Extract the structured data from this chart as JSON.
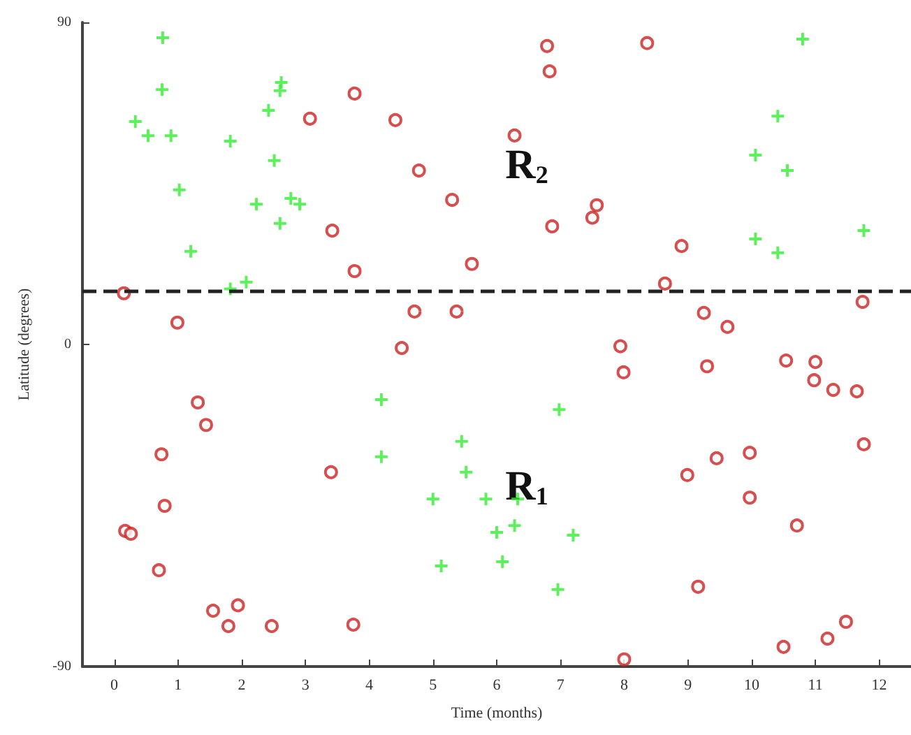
{
  "chart_data": {
    "type": "scatter",
    "xlabel": "Time (months)",
    "ylabel": "Latitude (degrees)",
    "xlim": [
      -0.5,
      12.5
    ],
    "xticks": [
      0,
      1,
      2,
      3,
      4,
      5,
      6,
      7,
      8,
      9,
      10,
      11,
      12
    ],
    "ylim": [
      -90,
      90
    ],
    "yticks": [
      -90,
      0,
      90
    ],
    "grid": false,
    "ref_lines": [
      {
        "axis": "y",
        "value": 15,
        "line_style": "dashed",
        "color": "#222222"
      }
    ],
    "annotations": [
      "R$_{2}$",
      "R$_{1}$"
    ],
    "series": [
      {
        "color": "#33ee33",
        "marker": "cross",
        "x": [
          0.76,
          0.75,
          0.33,
          0.53,
          0.89,
          1.02,
          1.2,
          1.82,
          2.07,
          1.82,
          2.42,
          2.62,
          2.6,
          2.51,
          2.23,
          2.77,
          2.91,
          2.6,
          10.8,
          10.41,
          10.06,
          10.56,
          10.06,
          10.41,
          11.76,
          4.19,
          4.19,
          5.0,
          5.13,
          5.45,
          5.52,
          6.98,
          5.83,
          6.33,
          6.0,
          6.28,
          7.2,
          6.09,
          6.96
        ],
        "values": [
          85.7,
          71.2,
          62.3,
          58.3,
          58.3,
          43.2,
          26,
          15.5,
          17.4,
          56.8,
          65.4,
          73.2,
          70.9,
          51.4,
          39.2,
          40.8,
          39.2,
          33.8,
          85.3,
          63.8,
          52.9,
          48.6,
          29.5,
          25.6,
          31.8,
          -15.4,
          -31.4,
          -43.2,
          -61.9,
          -27.1,
          -35.7,
          -18.2,
          -43.2,
          -43.2,
          -52.5,
          -50.6,
          -53.3,
          -60.7,
          -68.5
        ]
      },
      {
        "color": "#cc2222",
        "marker": "circle",
        "x": [
          0.15,
          0.99,
          3.07,
          3.77,
          4.41,
          4.78,
          5.3,
          3.42,
          3.77,
          4.71,
          5.37,
          4.51,
          6.79,
          6.83,
          8.36,
          6.28,
          5.61,
          6.87,
          7.57,
          7.5,
          8.9,
          8.64,
          11.74,
          9.25,
          9.62,
          7.94,
          1.31,
          1.44,
          0.74,
          3.4,
          0.79,
          0.17,
          0.26,
          0.7,
          1.55,
          1.94,
          1.79,
          2.47,
          3.75,
          7.99,
          9.3,
          10.54,
          11.0,
          10.98,
          11.28,
          11.65,
          11.76,
          9.45,
          9.97,
          8.99,
          9.97,
          10.71,
          9.16,
          11.48,
          11.19,
          10.5,
          8.0
        ],
        "values": [
          14.3,
          6.1,
          63.1,
          70.1,
          62.7,
          48.6,
          40.4,
          31.8,
          20.5,
          9.2,
          9.2,
          -1,
          83.4,
          76.3,
          84.2,
          58.4,
          22.5,
          33,
          38.9,
          35.4,
          27.5,
          17,
          11.9,
          8.8,
          4.9,
          -0.5,
          -16.2,
          -22.5,
          -30.7,
          -35.7,
          -45.1,
          -52.1,
          -52.9,
          -63.1,
          -74.4,
          -72.9,
          -78.7,
          -78.7,
          -78.3,
          -7.8,
          -6.1,
          -4.5,
          -4.9,
          -10,
          -12.7,
          -13.1,
          -27.9,
          -31.8,
          -30.3,
          -36.5,
          -42.8,
          -50.6,
          -67.7,
          -77.5,
          -82.2,
          -84.5,
          -88
        ]
      }
    ]
  }
}
